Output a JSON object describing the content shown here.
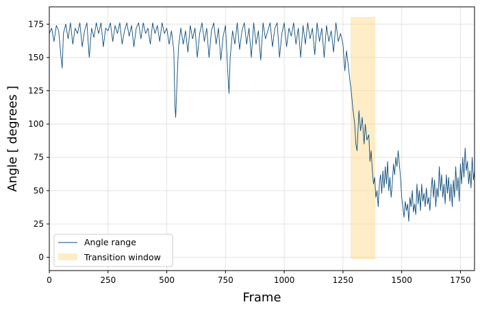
{
  "chart_data": {
    "type": "line",
    "xlabel": "Frame",
    "ylabel": "Angle [ degrees ]",
    "xlim": [
      0,
      1810
    ],
    "ylim": [
      -10,
      188
    ],
    "x_ticks": [
      0,
      250,
      500,
      750,
      1000,
      1250,
      1500,
      1750
    ],
    "y_ticks": [
      0,
      25,
      50,
      75,
      100,
      125,
      150,
      175
    ],
    "grid": true,
    "legend_position": "lower-left",
    "series": [
      {
        "name": "Angle range",
        "color": "#0a4a78",
        "points": [
          [
            0,
            168
          ],
          [
            10,
            172
          ],
          [
            20,
            162
          ],
          [
            30,
            174
          ],
          [
            40,
            170
          ],
          [
            50,
            150
          ],
          [
            55,
            142
          ],
          [
            60,
            168
          ],
          [
            70,
            175
          ],
          [
            80,
            164
          ],
          [
            90,
            176
          ],
          [
            100,
            160
          ],
          [
            110,
            172
          ],
          [
            120,
            168
          ],
          [
            130,
            176
          ],
          [
            140,
            158
          ],
          [
            150,
            170
          ],
          [
            160,
            176
          ],
          [
            170,
            150
          ],
          [
            180,
            172
          ],
          [
            190,
            165
          ],
          [
            200,
            176
          ],
          [
            210,
            168
          ],
          [
            220,
            176
          ],
          [
            230,
            158
          ],
          [
            240,
            172
          ],
          [
            250,
            170
          ],
          [
            260,
            176
          ],
          [
            270,
            162
          ],
          [
            280,
            174
          ],
          [
            290,
            168
          ],
          [
            300,
            176
          ],
          [
            310,
            160
          ],
          [
            320,
            170
          ],
          [
            330,
            176
          ],
          [
            340,
            166
          ],
          [
            350,
            174
          ],
          [
            360,
            158
          ],
          [
            370,
            172
          ],
          [
            380,
            176
          ],
          [
            390,
            164
          ],
          [
            400,
            176
          ],
          [
            410,
            168
          ],
          [
            420,
            172
          ],
          [
            430,
            160
          ],
          [
            440,
            176
          ],
          [
            450,
            168
          ],
          [
            460,
            174
          ],
          [
            470,
            162
          ],
          [
            480,
            176
          ],
          [
            490,
            168
          ],
          [
            500,
            172
          ],
          [
            510,
            160
          ],
          [
            520,
            170
          ],
          [
            530,
            155
          ],
          [
            535,
            113
          ],
          [
            538,
            105
          ],
          [
            545,
            138
          ],
          [
            550,
            158
          ],
          [
            560,
            172
          ],
          [
            570,
            160
          ],
          [
            580,
            170
          ],
          [
            590,
            154
          ],
          [
            600,
            174
          ],
          [
            610,
            164
          ],
          [
            620,
            172
          ],
          [
            630,
            150
          ],
          [
            640,
            168
          ],
          [
            650,
            176
          ],
          [
            660,
            162
          ],
          [
            670,
            172
          ],
          [
            680,
            150
          ],
          [
            690,
            170
          ],
          [
            700,
            176
          ],
          [
            710,
            160
          ],
          [
            720,
            172
          ],
          [
            730,
            148
          ],
          [
            740,
            166
          ],
          [
            750,
            174
          ],
          [
            760,
            138
          ],
          [
            765,
            123
          ],
          [
            770,
            150
          ],
          [
            780,
            170
          ],
          [
            790,
            160
          ],
          [
            800,
            176
          ],
          [
            810,
            156
          ],
          [
            820,
            170
          ],
          [
            830,
            176
          ],
          [
            840,
            160
          ],
          [
            850,
            172
          ],
          [
            860,
            150
          ],
          [
            870,
            176
          ],
          [
            880,
            160
          ],
          [
            890,
            170
          ],
          [
            900,
            148
          ],
          [
            910,
            176
          ],
          [
            920,
            164
          ],
          [
            930,
            170
          ],
          [
            940,
            176
          ],
          [
            950,
            158
          ],
          [
            960,
            172
          ],
          [
            970,
            176
          ],
          [
            980,
            150
          ],
          [
            990,
            168
          ],
          [
            1000,
            176
          ],
          [
            1010,
            158
          ],
          [
            1020,
            172
          ],
          [
            1030,
            166
          ],
          [
            1040,
            176
          ],
          [
            1050,
            160
          ],
          [
            1060,
            172
          ],
          [
            1070,
            150
          ],
          [
            1080,
            174
          ],
          [
            1090,
            160
          ],
          [
            1100,
            176
          ],
          [
            1110,
            164
          ],
          [
            1120,
            172
          ],
          [
            1130,
            152
          ],
          [
            1140,
            176
          ],
          [
            1150,
            162
          ],
          [
            1160,
            172
          ],
          [
            1170,
            150
          ],
          [
            1180,
            174
          ],
          [
            1190,
            162
          ],
          [
            1200,
            170
          ],
          [
            1210,
            154
          ],
          [
            1220,
            176
          ],
          [
            1230,
            162
          ],
          [
            1240,
            168
          ],
          [
            1250,
            160
          ],
          [
            1258,
            140
          ],
          [
            1265,
            155
          ],
          [
            1272,
            145
          ],
          [
            1280,
            132
          ],
          [
            1285,
            125
          ],
          [
            1292,
            112
          ],
          [
            1300,
            100
          ],
          [
            1305,
            85
          ],
          [
            1310,
            80
          ],
          [
            1318,
            110
          ],
          [
            1325,
            95
          ],
          [
            1332,
            105
          ],
          [
            1340,
            85
          ],
          [
            1345,
            100
          ],
          [
            1352,
            88
          ],
          [
            1360,
            92
          ],
          [
            1365,
            72
          ],
          [
            1370,
            80
          ],
          [
            1375,
            65
          ],
          [
            1380,
            55
          ],
          [
            1385,
            60
          ],
          [
            1390,
            45
          ],
          [
            1395,
            50
          ],
          [
            1400,
            38
          ],
          [
            1405,
            55
          ],
          [
            1410,
            62
          ],
          [
            1415,
            48
          ],
          [
            1420,
            65
          ],
          [
            1425,
            52
          ],
          [
            1430,
            68
          ],
          [
            1435,
            55
          ],
          [
            1440,
            72
          ],
          [
            1445,
            50
          ],
          [
            1450,
            60
          ],
          [
            1455,
            45
          ],
          [
            1460,
            55
          ],
          [
            1465,
            70
          ],
          [
            1470,
            62
          ],
          [
            1475,
            75
          ],
          [
            1480,
            68
          ],
          [
            1485,
            80
          ],
          [
            1490,
            70
          ],
          [
            1495,
            60
          ],
          [
            1500,
            45
          ],
          [
            1505,
            38
          ],
          [
            1510,
            30
          ],
          [
            1515,
            42
          ],
          [
            1520,
            35
          ],
          [
            1525,
            40
          ],
          [
            1530,
            27
          ],
          [
            1535,
            45
          ],
          [
            1540,
            38
          ],
          [
            1545,
            50
          ],
          [
            1550,
            34
          ],
          [
            1555,
            40
          ],
          [
            1560,
            32
          ],
          [
            1565,
            55
          ],
          [
            1570,
            40
          ],
          [
            1575,
            50
          ],
          [
            1580,
            35
          ],
          [
            1585,
            55
          ],
          [
            1590,
            42
          ],
          [
            1595,
            48
          ],
          [
            1600,
            38
          ],
          [
            1605,
            52
          ],
          [
            1610,
            40
          ],
          [
            1615,
            45
          ],
          [
            1620,
            35
          ],
          [
            1625,
            50
          ],
          [
            1630,
            60
          ],
          [
            1635,
            45
          ],
          [
            1640,
            58
          ],
          [
            1645,
            38
          ],
          [
            1650,
            52
          ],
          [
            1655,
            45
          ],
          [
            1660,
            68
          ],
          [
            1665,
            50
          ],
          [
            1670,
            62
          ],
          [
            1675,
            45
          ],
          [
            1680,
            55
          ],
          [
            1685,
            40
          ],
          [
            1690,
            62
          ],
          [
            1695,
            48
          ],
          [
            1700,
            60
          ],
          [
            1705,
            42
          ],
          [
            1710,
            55
          ],
          [
            1715,
            38
          ],
          [
            1720,
            58
          ],
          [
            1725,
            45
          ],
          [
            1730,
            68
          ],
          [
            1735,
            50
          ],
          [
            1740,
            60
          ],
          [
            1745,
            42
          ],
          [
            1750,
            70
          ],
          [
            1755,
            55
          ],
          [
            1760,
            75
          ],
          [
            1765,
            60
          ],
          [
            1770,
            82
          ],
          [
            1775,
            65
          ],
          [
            1780,
            72
          ],
          [
            1785,
            55
          ],
          [
            1790,
            65
          ],
          [
            1795,
            52
          ],
          [
            1800,
            75
          ],
          [
            1805,
            58
          ],
          [
            1810,
            65
          ]
        ]
      }
    ],
    "shaded_regions": [
      {
        "name": "Transition window",
        "x_start": 1285,
        "x_end": 1385,
        "y_start": -1,
        "y_end": 180,
        "color": "#fdd882"
      }
    ]
  }
}
